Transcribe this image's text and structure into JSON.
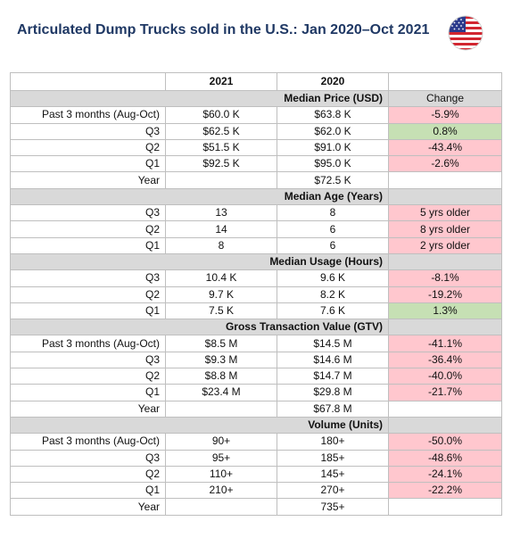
{
  "title": "Articulated Dump Trucks sold in the U.S.: Jan 2020–Oct 2021",
  "flag_icon": "us-flag-icon",
  "colors": {
    "title": "#1f3864",
    "section_bg": "#d9d9d9",
    "negative_bg": "#ffc7ce",
    "positive_bg": "#c6e0b4"
  },
  "columns": [
    "",
    "2021",
    "2020",
    ""
  ],
  "sections": [
    {
      "title": "Median Price (USD)",
      "change_header": "Change",
      "rows": [
        {
          "label": "Past 3 months (Aug-Oct)",
          "y2021": "$60.0 K",
          "y2020": "$63.8 K",
          "change": "-5.9%",
          "tone": "pink"
        },
        {
          "label": "Q3",
          "y2021": "$62.5 K",
          "y2020": "$62.0 K",
          "change": "0.8%",
          "tone": "green"
        },
        {
          "label": "Q2",
          "y2021": "$51.5 K",
          "y2020": "$91.0 K",
          "change": "-43.4%",
          "tone": "pink"
        },
        {
          "label": "Q1",
          "y2021": "$92.5 K",
          "y2020": "$95.0 K",
          "change": "-2.6%",
          "tone": "pink"
        },
        {
          "label": "Year",
          "y2021": "",
          "y2020": "$72.5 K",
          "change": "",
          "tone": "none"
        }
      ]
    },
    {
      "title": "Median Age (Years)",
      "change_header": "",
      "rows": [
        {
          "label": "Q3",
          "y2021": "13",
          "y2020": "8",
          "change": "5 yrs older",
          "tone": "pink"
        },
        {
          "label": "Q2",
          "y2021": "14",
          "y2020": "6",
          "change": "8 yrs older",
          "tone": "pink"
        },
        {
          "label": "Q1",
          "y2021": "8",
          "y2020": "6",
          "change": "2 yrs older",
          "tone": "pink"
        }
      ]
    },
    {
      "title": "Median Usage (Hours)",
      "change_header": "",
      "rows": [
        {
          "label": "Q3",
          "y2021": "10.4 K",
          "y2020": "9.6 K",
          "change": "-8.1%",
          "tone": "pink"
        },
        {
          "label": "Q2",
          "y2021": "9.7 K",
          "y2020": "8.2 K",
          "change": "-19.2%",
          "tone": "pink"
        },
        {
          "label": "Q1",
          "y2021": "7.5 K",
          "y2020": "7.6 K",
          "change": "1.3%",
          "tone": "green"
        }
      ]
    },
    {
      "title": "Gross Transaction Value (GTV)",
      "change_header": "",
      "rows": [
        {
          "label": "Past 3 months (Aug-Oct)",
          "y2021": "$8.5 M",
          "y2020": "$14.5 M",
          "change": "-41.1%",
          "tone": "pink"
        },
        {
          "label": "Q3",
          "y2021": "$9.3 M",
          "y2020": "$14.6 M",
          "change": "-36.4%",
          "tone": "pink"
        },
        {
          "label": "Q2",
          "y2021": "$8.8 M",
          "y2020": "$14.7 M",
          "change": "-40.0%",
          "tone": "pink"
        },
        {
          "label": "Q1",
          "y2021": "$23.4 M",
          "y2020": "$29.8 M",
          "change": "-21.7%",
          "tone": "pink"
        },
        {
          "label": "Year",
          "y2021": "",
          "y2020": "$67.8 M",
          "change": "",
          "tone": "none"
        }
      ]
    },
    {
      "title": "Volume (Units)",
      "change_header": "",
      "rows": [
        {
          "label": "Past 3 months (Aug-Oct)",
          "y2021": "90+",
          "y2020": "180+",
          "change": "-50.0%",
          "tone": "pink"
        },
        {
          "label": "Q3",
          "y2021": "95+",
          "y2020": "185+",
          "change": "-48.6%",
          "tone": "pink"
        },
        {
          "label": "Q2",
          "y2021": "110+",
          "y2020": "145+",
          "change": "-24.1%",
          "tone": "pink"
        },
        {
          "label": "Q1",
          "y2021": "210+",
          "y2020": "270+",
          "change": "-22.2%",
          "tone": "pink"
        },
        {
          "label": "Year",
          "y2021": "",
          "y2020": "735+",
          "change": "",
          "tone": "none"
        }
      ]
    }
  ]
}
